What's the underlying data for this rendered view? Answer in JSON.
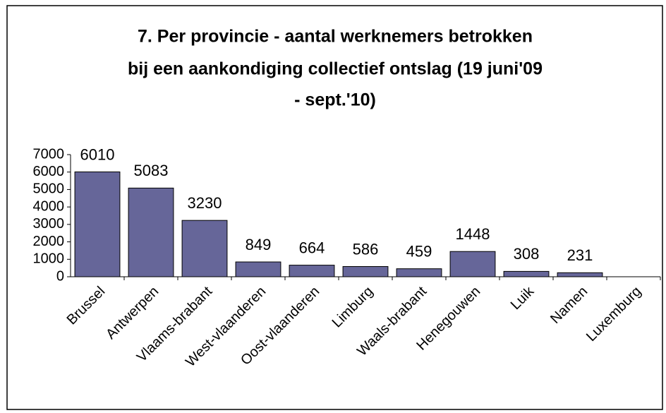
{
  "chart_data": {
    "type": "bar",
    "title": [
      "7. Per provincie - aantal werknemers betrokken",
      "bij een aankondiging collectief ontslag (19 juni'09",
      "- sept.'10)"
    ],
    "categories": [
      "Brussel",
      "Antwerpen",
      "Vlaams-brabant",
      "West-vlaanderen",
      "Oost-vlaanderen",
      "Limburg",
      "Waals-brabant",
      "Henegouwen",
      "Luik",
      "Namen",
      "Luxemburg"
    ],
    "values": [
      6010,
      5083,
      3230,
      849,
      664,
      586,
      459,
      1448,
      308,
      231,
      null
    ],
    "color": "#666699",
    "ylim": [
      0,
      7000
    ],
    "yticks": [
      0,
      1000,
      2000,
      3000,
      4000,
      5000,
      6000,
      7000
    ]
  }
}
